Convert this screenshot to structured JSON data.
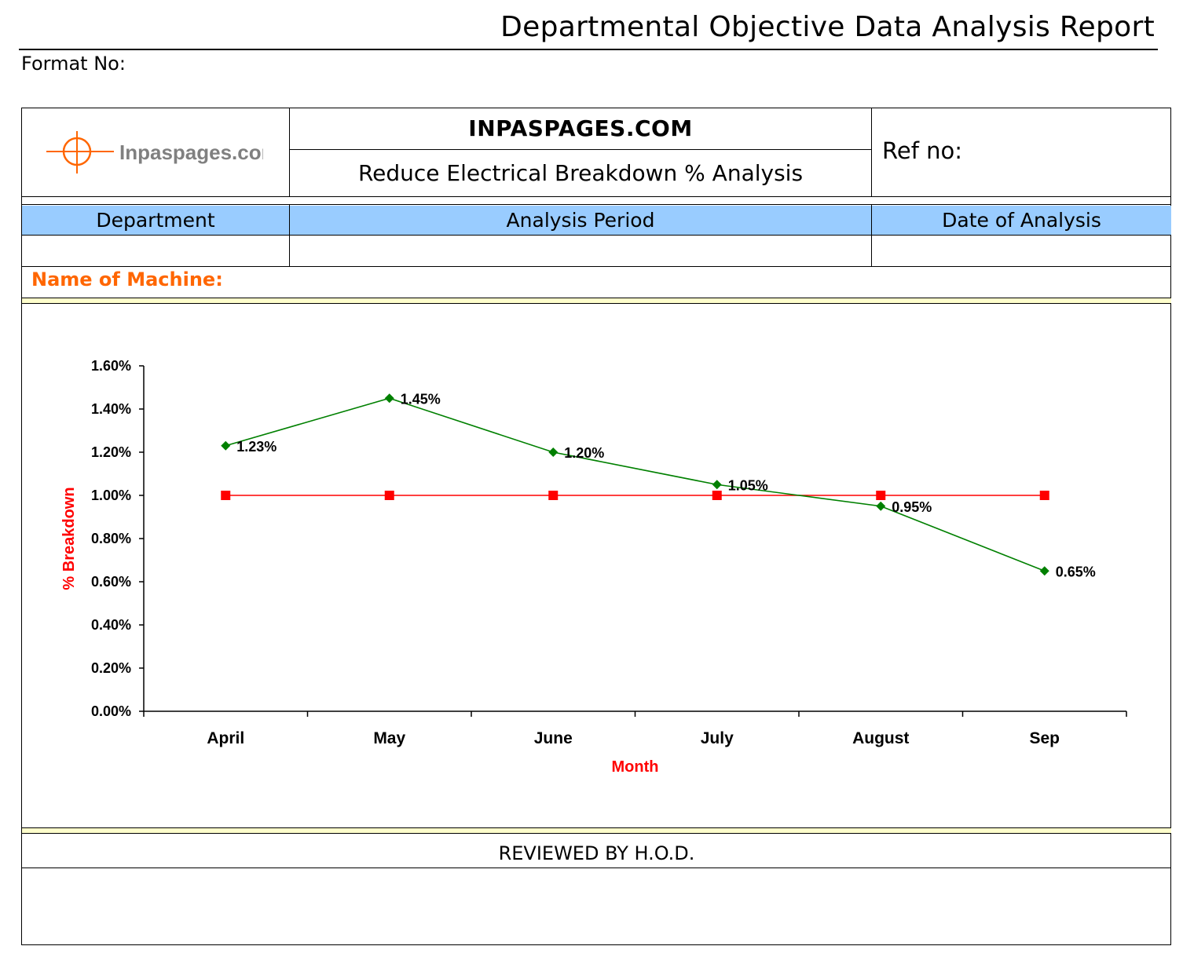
{
  "report": {
    "title": "Departmental Objective Data Analysis Report",
    "format_no_label": "Format No:"
  },
  "header": {
    "logo_text": "Inpaspages.com",
    "company": "INPASPAGES.COM",
    "analysis_title": "Reduce Electrical  Breakdown % Analysis",
    "ref_label": "Ref no:"
  },
  "info_table": {
    "columns": [
      "Department",
      "Analysis Period",
      "Date of Analysis"
    ],
    "values": [
      "",
      "",
      ""
    ],
    "header_color": "#99ccff"
  },
  "machine": {
    "label": "Name of Machine:",
    "color": "#ff6600"
  },
  "footer": {
    "reviewed_label": "REVIEWED BY H.O.D."
  },
  "chart_data": {
    "type": "line",
    "categories": [
      "April",
      "May",
      "June",
      "July",
      "August",
      "Sep"
    ],
    "series": [
      {
        "values": [
          1.23,
          1.45,
          1.2,
          1.05,
          0.95,
          0.65
        ],
        "color": "#008000",
        "marker": "diamond",
        "show_labels": true
      },
      {
        "values": [
          1.0,
          1.0,
          1.0,
          1.0,
          1.0,
          1.0
        ],
        "color": "#ff0000",
        "marker": "square",
        "show_labels": false
      }
    ],
    "data_labels": [
      "1.23%",
      "1.45%",
      "1.20%",
      "1.05%",
      "0.95%",
      "0.65%"
    ],
    "xlabel": "Month",
    "ylabel": "% Breakdown",
    "ylim": [
      0,
      1.6
    ],
    "yticks": [
      "0.00%",
      "0.20%",
      "0.40%",
      "0.60%",
      "0.80%",
      "1.00%",
      "1.20%",
      "1.40%",
      "1.60%"
    ],
    "axis_title_color": "#ff0000",
    "grid": false,
    "legend": "none"
  }
}
